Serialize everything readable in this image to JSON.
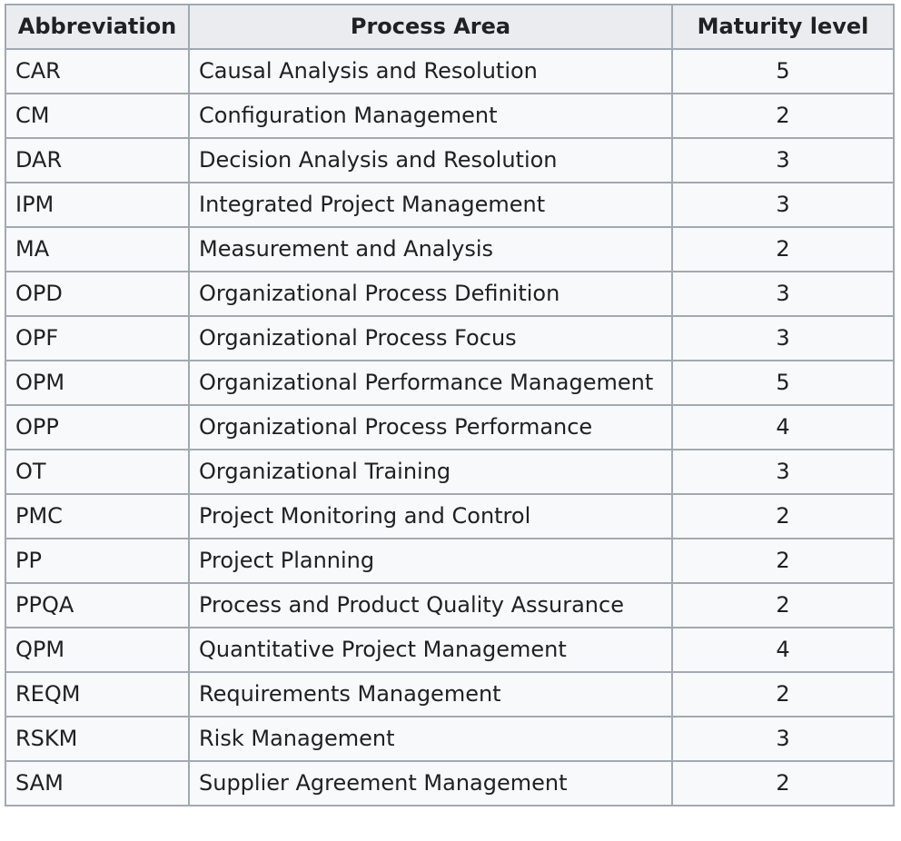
{
  "table": {
    "headers": [
      "Abbreviation",
      "Process Area",
      "Maturity level"
    ],
    "rows": [
      [
        "CAR",
        "Causal Analysis and Resolution",
        "5"
      ],
      [
        "CM",
        "Configuration Management",
        "2"
      ],
      [
        "DAR",
        "Decision Analysis and Resolution",
        "3"
      ],
      [
        "IPM",
        "Integrated Project Management",
        "3"
      ],
      [
        "MA",
        "Measurement and Analysis",
        "2"
      ],
      [
        "OPD",
        "Organizational Process Definition",
        "3"
      ],
      [
        "OPF",
        "Organizational Process Focus",
        "3"
      ],
      [
        "OPM",
        "Organizational Performance Management",
        "5"
      ],
      [
        "OPP",
        "Organizational Process Performance",
        "4"
      ],
      [
        "OT",
        "Organizational Training",
        "3"
      ],
      [
        "PMC",
        "Project Monitoring and Control",
        "2"
      ],
      [
        "PP",
        "Project Planning",
        "2"
      ],
      [
        "PPQA",
        "Process and Product Quality Assurance",
        "2"
      ],
      [
        "QPM",
        "Quantitative Project Management",
        "4"
      ],
      [
        "REQM",
        "Requirements Management",
        "2"
      ],
      [
        "RSKM",
        "Risk Management",
        "3"
      ],
      [
        "SAM",
        "Supplier Agreement Management",
        "2"
      ]
    ]
  },
  "colors": {
    "header_bg": "#eaecf0",
    "cell_bg": "#f8f9fa",
    "border": "#a2a9b1",
    "text": "#202122"
  }
}
